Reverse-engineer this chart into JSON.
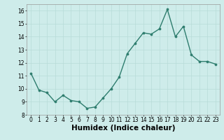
{
  "x": [
    0,
    1,
    2,
    3,
    4,
    5,
    6,
    7,
    8,
    9,
    10,
    11,
    12,
    13,
    14,
    15,
    16,
    17,
    18,
    19,
    20,
    21,
    22,
    23
  ],
  "y": [
    11.2,
    9.9,
    9.7,
    9.0,
    9.5,
    9.1,
    9.0,
    8.5,
    8.6,
    9.3,
    10.0,
    10.9,
    12.7,
    13.5,
    14.3,
    14.2,
    14.6,
    16.1,
    14.0,
    14.8,
    12.6,
    12.1,
    12.1,
    11.9
  ],
  "line_color": "#2e7d6e",
  "marker": "o",
  "markersize": 2.2,
  "linewidth": 1.0,
  "xlabel": "Humidex (Indice chaleur)",
  "xlim": [
    -0.5,
    23.5
  ],
  "ylim": [
    8,
    16.5
  ],
  "yticks": [
    8,
    9,
    10,
    11,
    12,
    13,
    14,
    15,
    16
  ],
  "xticks": [
    0,
    1,
    2,
    3,
    4,
    5,
    6,
    7,
    8,
    9,
    10,
    11,
    12,
    13,
    14,
    15,
    16,
    17,
    18,
    19,
    20,
    21,
    22,
    23
  ],
  "background_color": "#ceecea",
  "grid_color": "#b8dbd8",
  "tick_fontsize": 5.5,
  "label_fontsize": 7.5,
  "label_fontweight": "bold"
}
